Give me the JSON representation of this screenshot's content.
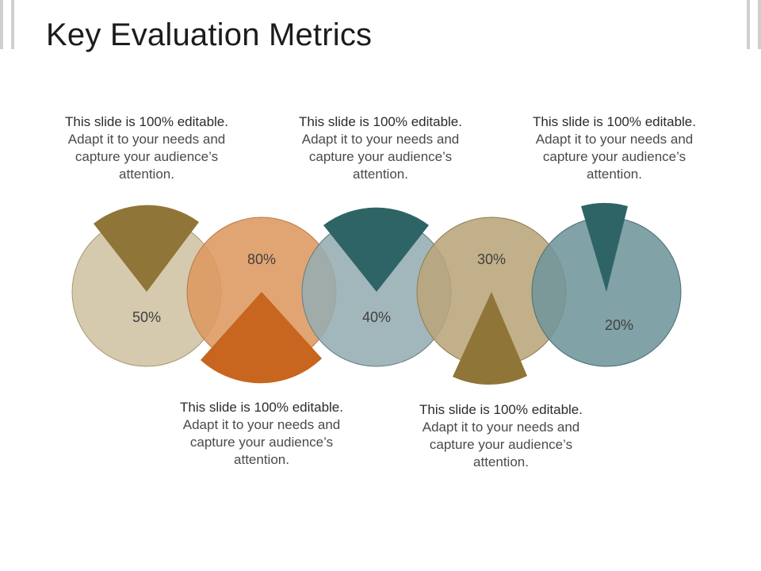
{
  "slide": {
    "title": "Key Evaluation Metrics"
  },
  "metrics": [
    {
      "label": "50%",
      "value": 50,
      "circle_color": "#cfc2a3",
      "wedge_color": "#8f7538",
      "wedge_position": "top"
    },
    {
      "label": "80%",
      "value": 80,
      "circle_color": "#dd9960",
      "wedge_color": "#c8651e",
      "wedge_position": "bottom"
    },
    {
      "label": "40%",
      "value": 40,
      "circle_color": "#95adb2",
      "wedge_color": "#2f6467",
      "wedge_position": "top"
    },
    {
      "label": "30%",
      "value": 30,
      "circle_color": "#b9a57a",
      "wedge_color": "#8f7538",
      "wedge_position": "bottom"
    },
    {
      "label": "20%",
      "value": 20,
      "circle_color": "#70959a",
      "wedge_color": "#2f6467",
      "wedge_position": "top"
    }
  ],
  "captions": [
    {
      "line1": "This slide is 100% editable.",
      "rest": "Adapt it to your needs and capture your audience’s attention."
    },
    {
      "line1": "This slide is 100% editable.",
      "rest": "Adapt it to your needs and capture your audience’s attention."
    },
    {
      "line1": "This slide is 100% editable.",
      "rest": "Adapt it to your needs and capture your audience’s attention."
    },
    {
      "line1": "This slide is 100% editable.",
      "rest": "Adapt it to your needs and capture your audience’s attention."
    },
    {
      "line1": "This slide is 100% editable.",
      "rest": "Adapt it to your needs and capture your audience’s attention."
    }
  ]
}
